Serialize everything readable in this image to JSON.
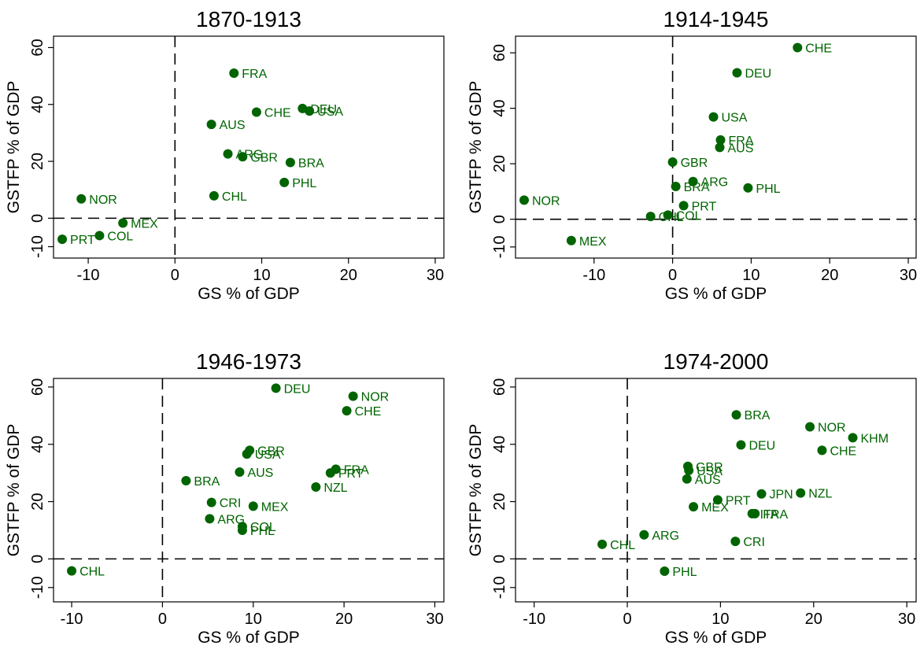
{
  "chart_data": [
    {
      "type": "scatter",
      "title": "1870-1913",
      "xlabel": "GS % of GDP",
      "ylabel": "GSTFP % of GDP",
      "xlim": [
        -14,
        31
      ],
      "ylim": [
        -14,
        64
      ],
      "xticks": [
        -10,
        0,
        10,
        20,
        30
      ],
      "yticks": [
        -10,
        0,
        20,
        40,
        60
      ],
      "reference_lines": {
        "x": 0,
        "y": 0,
        "style": "dashed"
      },
      "point_color": "#006400",
      "points": [
        {
          "label": "FRA",
          "x": 6.8,
          "y": 51
        },
        {
          "label": "DEU",
          "x": 14.7,
          "y": 38.6
        },
        {
          "label": "USA",
          "x": 15.5,
          "y": 37.7
        },
        {
          "label": "CHE",
          "x": 9.4,
          "y": 37.3
        },
        {
          "label": "AUS",
          "x": 4.2,
          "y": 33.0
        },
        {
          "label": "ARG",
          "x": 6.1,
          "y": 22.6
        },
        {
          "label": "GBR",
          "x": 7.8,
          "y": 21.6
        },
        {
          "label": "BRA",
          "x": 13.3,
          "y": 19.6
        },
        {
          "label": "PHL",
          "x": 12.6,
          "y": 12.6
        },
        {
          "label": "CHL",
          "x": 4.5,
          "y": 7.9
        },
        {
          "label": "NOR",
          "x": -10.8,
          "y": 6.8
        },
        {
          "label": "MEX",
          "x": -6.0,
          "y": -1.7
        },
        {
          "label": "COL",
          "x": -8.7,
          "y": -6.1
        },
        {
          "label": "PRT",
          "x": -13.0,
          "y": -7.4
        }
      ]
    },
    {
      "type": "scatter",
      "title": "1914-1945",
      "xlabel": "GS % of GDP",
      "ylabel": "GSTFP % of GDP",
      "xlim": [
        -20,
        31
      ],
      "ylim": [
        -14,
        66
      ],
      "xticks": [
        -10,
        0,
        10,
        20,
        30
      ],
      "yticks": [
        -10,
        0,
        20,
        40,
        60
      ],
      "reference_lines": {
        "x": 0,
        "y": 0,
        "style": "dashed"
      },
      "point_color": "#006400",
      "points": [
        {
          "label": "CHE",
          "x": 15.9,
          "y": 61.9
        },
        {
          "label": "DEU",
          "x": 8.2,
          "y": 52.8
        },
        {
          "label": "USA",
          "x": 5.2,
          "y": 36.9
        },
        {
          "label": "FRA",
          "x": 6.1,
          "y": 28.6
        },
        {
          "label": "AUS",
          "x": 6.0,
          "y": 25.9
        },
        {
          "label": "GBR",
          "x": 0.0,
          "y": 20.6
        },
        {
          "label": "ARG",
          "x": 2.6,
          "y": 13.6
        },
        {
          "label": "BRA",
          "x": 0.4,
          "y": 11.8
        },
        {
          "label": "PHL",
          "x": 9.6,
          "y": 11.3
        },
        {
          "label": "NOR",
          "x": -18.9,
          "y": 6.9
        },
        {
          "label": "PRT",
          "x": 1.4,
          "y": 4.9
        },
        {
          "label": "COL",
          "x": -0.6,
          "y": 1.5
        },
        {
          "label": "CHL",
          "x": -2.8,
          "y": 1.0
        },
        {
          "label": "MEX",
          "x": -12.9,
          "y": -7.7
        }
      ]
    },
    {
      "type": "scatter",
      "title": "1946-1973",
      "xlabel": "GS % of GDP",
      "ylabel": "GSTFP % of GDP",
      "xlim": [
        -12,
        31
      ],
      "ylim": [
        -15,
        63
      ],
      "xticks": [
        -10,
        0,
        10,
        20,
        30
      ],
      "yticks": [
        -10,
        0,
        20,
        40,
        60
      ],
      "reference_lines": {
        "x": 0,
        "y": 0,
        "style": "dashed"
      },
      "point_color": "#006400",
      "points": [
        {
          "label": "DEU",
          "x": 12.5,
          "y": 59.6
        },
        {
          "label": "NOR",
          "x": 21.0,
          "y": 56.8
        },
        {
          "label": "CHE",
          "x": 20.3,
          "y": 51.7
        },
        {
          "label": "GBR",
          "x": 9.6,
          "y": 37.9
        },
        {
          "label": "USA",
          "x": 9.3,
          "y": 36.6
        },
        {
          "label": "FRA",
          "x": 19.1,
          "y": 31.3
        },
        {
          "label": "PRT",
          "x": 18.5,
          "y": 30.0
        },
        {
          "label": "AUS",
          "x": 8.5,
          "y": 30.3
        },
        {
          "label": "BRA",
          "x": 2.6,
          "y": 27.3
        },
        {
          "label": "NZL",
          "x": 16.9,
          "y": 25.1
        },
        {
          "label": "CRI",
          "x": 5.4,
          "y": 19.7
        },
        {
          "label": "MEX",
          "x": 10.0,
          "y": 18.4
        },
        {
          "label": "ARG",
          "x": 5.2,
          "y": 14.0
        },
        {
          "label": "COL",
          "x": 8.8,
          "y": 11.3
        },
        {
          "label": "PHL",
          "x": 8.8,
          "y": 10.0
        },
        {
          "label": "CHL",
          "x": -10.0,
          "y": -4.2
        }
      ]
    },
    {
      "type": "scatter",
      "title": "1974-2000",
      "xlabel": "GS % of GDP",
      "ylabel": "GSTFP % of GDP",
      "xlim": [
        -12,
        31
      ],
      "ylim": [
        -15,
        63
      ],
      "xticks": [
        -10,
        0,
        10,
        20,
        30
      ],
      "yticks": [
        -10,
        0,
        20,
        40,
        60
      ],
      "reference_lines": {
        "x": 0,
        "y": 0,
        "style": "dashed"
      },
      "point_color": "#006400",
      "points": [
        {
          "label": "BRA",
          "x": 11.7,
          "y": 50.3
        },
        {
          "label": "NOR",
          "x": 19.6,
          "y": 46.1
        },
        {
          "label": "KHM",
          "x": 24.2,
          "y": 42.3
        },
        {
          "label": "DEU",
          "x": 12.2,
          "y": 39.8
        },
        {
          "label": "CHE",
          "x": 20.9,
          "y": 37.9
        },
        {
          "label": "GBR",
          "x": 6.5,
          "y": 32.3
        },
        {
          "label": "USA",
          "x": 6.6,
          "y": 30.9
        },
        {
          "label": "AUS",
          "x": 6.4,
          "y": 27.9
        },
        {
          "label": "JPN",
          "x": 14.4,
          "y": 22.7
        },
        {
          "label": "NZL",
          "x": 18.6,
          "y": 23.0
        },
        {
          "label": "PRT",
          "x": 9.7,
          "y": 20.6
        },
        {
          "label": "MEX",
          "x": 7.1,
          "y": 18.2
        },
        {
          "label": "ITA",
          "x": 13.4,
          "y": 15.8
        },
        {
          "label": "FRA",
          "x": 13.7,
          "y": 15.8
        },
        {
          "label": "ARG",
          "x": 1.8,
          "y": 8.4
        },
        {
          "label": "CRI",
          "x": 11.6,
          "y": 6.1
        },
        {
          "label": "CHL",
          "x": -2.7,
          "y": 5.1
        },
        {
          "label": "PHL",
          "x": 4.0,
          "y": -4.3
        }
      ]
    }
  ]
}
